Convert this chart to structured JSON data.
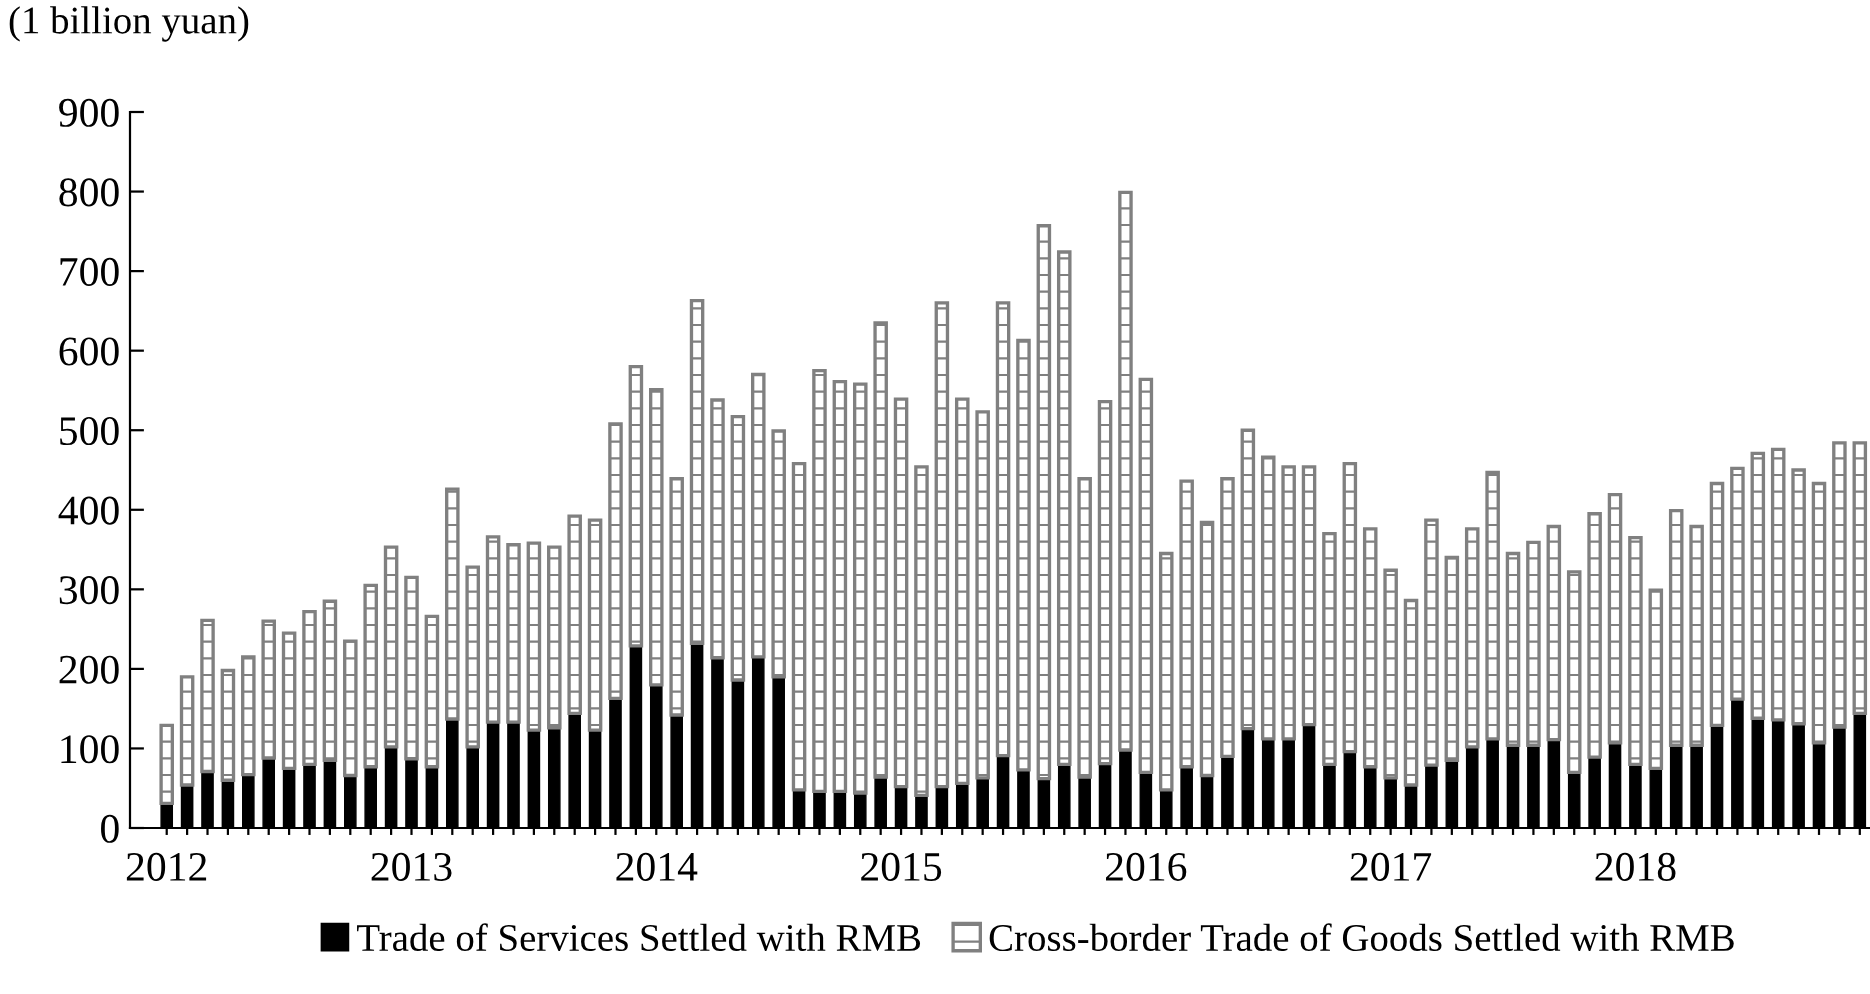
{
  "chart_data": {
    "type": "bar",
    "stacked": true,
    "ylabel": "(1 billion yuan)",
    "categories": [
      "2012",
      null,
      null,
      null,
      null,
      null,
      null,
      null,
      null,
      null,
      null,
      null,
      "2013",
      null,
      null,
      null,
      null,
      null,
      null,
      null,
      null,
      null,
      null,
      null,
      "2014",
      null,
      null,
      null,
      null,
      null,
      null,
      null,
      null,
      null,
      null,
      null,
      "2015",
      null,
      null,
      null,
      null,
      null,
      null,
      null,
      null,
      null,
      null,
      null,
      "2016",
      null,
      null,
      null,
      null,
      null,
      null,
      null,
      null,
      null,
      null,
      null,
      "2017",
      null,
      null,
      null,
      null,
      null,
      null,
      null,
      null,
      null,
      null,
      null,
      "2018",
      null,
      null,
      null,
      null,
      null,
      null,
      null,
      null,
      null,
      null,
      null
    ],
    "series": [
      {
        "name": "Trade of Services Settled with RMB",
        "color": "#000000",
        "values": [
          31,
          54,
          71,
          60,
          67,
          88,
          75,
          80,
          85,
          66,
          77,
          102,
          87,
          77,
          137,
          102,
          133,
          133,
          123,
          126,
          144,
          123,
          163,
          229,
          180,
          142,
          232,
          214,
          186,
          215,
          190,
          48,
          46,
          46,
          44,
          64,
          52,
          41,
          52,
          56,
          63,
          91,
          73,
          62,
          80,
          64,
          81,
          98,
          70,
          48,
          77,
          66,
          90,
          125,
          112,
          112,
          130,
          80,
          96,
          77,
          63,
          54,
          79,
          85,
          102,
          112,
          104,
          104,
          111,
          70,
          89,
          107,
          80,
          75,
          104,
          104,
          129,
          162,
          138,
          136,
          131,
          107,
          127,
          144
        ]
      },
      {
        "name": "Cross-border Trade of Goods Settled with RMB",
        "color": "#808080",
        "values": [
          98,
          136,
          190,
          138,
          148,
          172,
          170,
          192,
          200,
          169,
          228,
          251,
          228,
          189,
          289,
          226,
          233,
          223,
          235,
          227,
          248,
          264,
          345,
          351,
          371,
          297,
          431,
          324,
          331,
          355,
          309,
          410,
          529,
          515,
          514,
          571,
          487,
          413,
          608,
          483,
          460,
          569,
          540,
          695,
          644,
          375,
          455,
          701,
          494,
          297,
          359,
          318,
          349,
          375,
          354,
          342,
          324,
          290,
          362,
          299,
          261,
          232,
          308,
          255,
          274,
          335,
          241,
          255,
          268,
          252,
          306,
          312,
          285,
          224,
          295,
          275,
          304,
          290,
          333,
          340,
          319,
          326,
          357,
          340
        ]
      }
    ],
    "ylim": [
      0,
      900
    ],
    "yticks": [
      0,
      100,
      200,
      300,
      400,
      500,
      600,
      700,
      800,
      900
    ],
    "grid": false,
    "legend": "bottom"
  }
}
